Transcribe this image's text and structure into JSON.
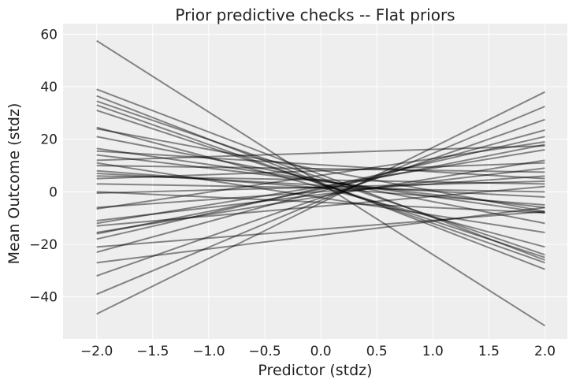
{
  "chart_data": {
    "type": "line",
    "title": "Prior predictive checks -- Flat priors",
    "xlabel": "Predictor (stdz)",
    "ylabel": "Mean Outcome (stdz)",
    "xlim": [
      -2.3,
      2.2
    ],
    "ylim": [
      -56,
      64
    ],
    "xticks": [
      -2.0,
      -1.5,
      -1.0,
      -0.5,
      0.0,
      0.5,
      1.0,
      1.5,
      2.0
    ],
    "xtick_labels": [
      "−2.0",
      "−1.5",
      "−1.0",
      "−0.5",
      "0.0",
      "0.5",
      "1.0",
      "1.5",
      "2.0"
    ],
    "yticks": [
      -40,
      -20,
      0,
      20,
      40,
      60
    ],
    "ytick_labels": [
      "−40",
      "−20",
      "0",
      "20",
      "40",
      "60"
    ],
    "grid": true,
    "line_color": "#000000",
    "line_opacity": 0.45,
    "background": "#eeeeee",
    "x": [
      -2.0,
      2.0
    ],
    "lines": [
      [
        57.5,
        -51
      ],
      [
        39,
        -26
      ],
      [
        36.5,
        -29.5
      ],
      [
        34.5,
        -24
      ],
      [
        33,
        -27
      ],
      [
        31,
        -25
      ],
      [
        24.5,
        -21
      ],
      [
        24,
        -7.5
      ],
      [
        21,
        -12
      ],
      [
        16.5,
        -8
      ],
      [
        15.5,
        5
      ],
      [
        14,
        -6
      ],
      [
        12,
        17.5
      ],
      [
        11,
        -15.5
      ],
      [
        10,
        7.5
      ],
      [
        8,
        -5
      ],
      [
        7,
        -2
      ],
      [
        6,
        3
      ],
      [
        5,
        11
      ],
      [
        3,
        0
      ],
      [
        0,
        -8
      ],
      [
        -0.5,
        4
      ],
      [
        -6,
        6
      ],
      [
        -6.5,
        19
      ],
      [
        -11,
        9
      ],
      [
        -12,
        16
      ],
      [
        -13,
        2
      ],
      [
        -15.5,
        12
      ],
      [
        -16,
        18
      ],
      [
        -18,
        21
      ],
      [
        -21,
        -7.5
      ],
      [
        -23,
        23.5
      ],
      [
        -27,
        -6
      ],
      [
        -32,
        27.5
      ],
      [
        -39,
        32.5
      ],
      [
        -46.5,
        38
      ]
    ]
  }
}
